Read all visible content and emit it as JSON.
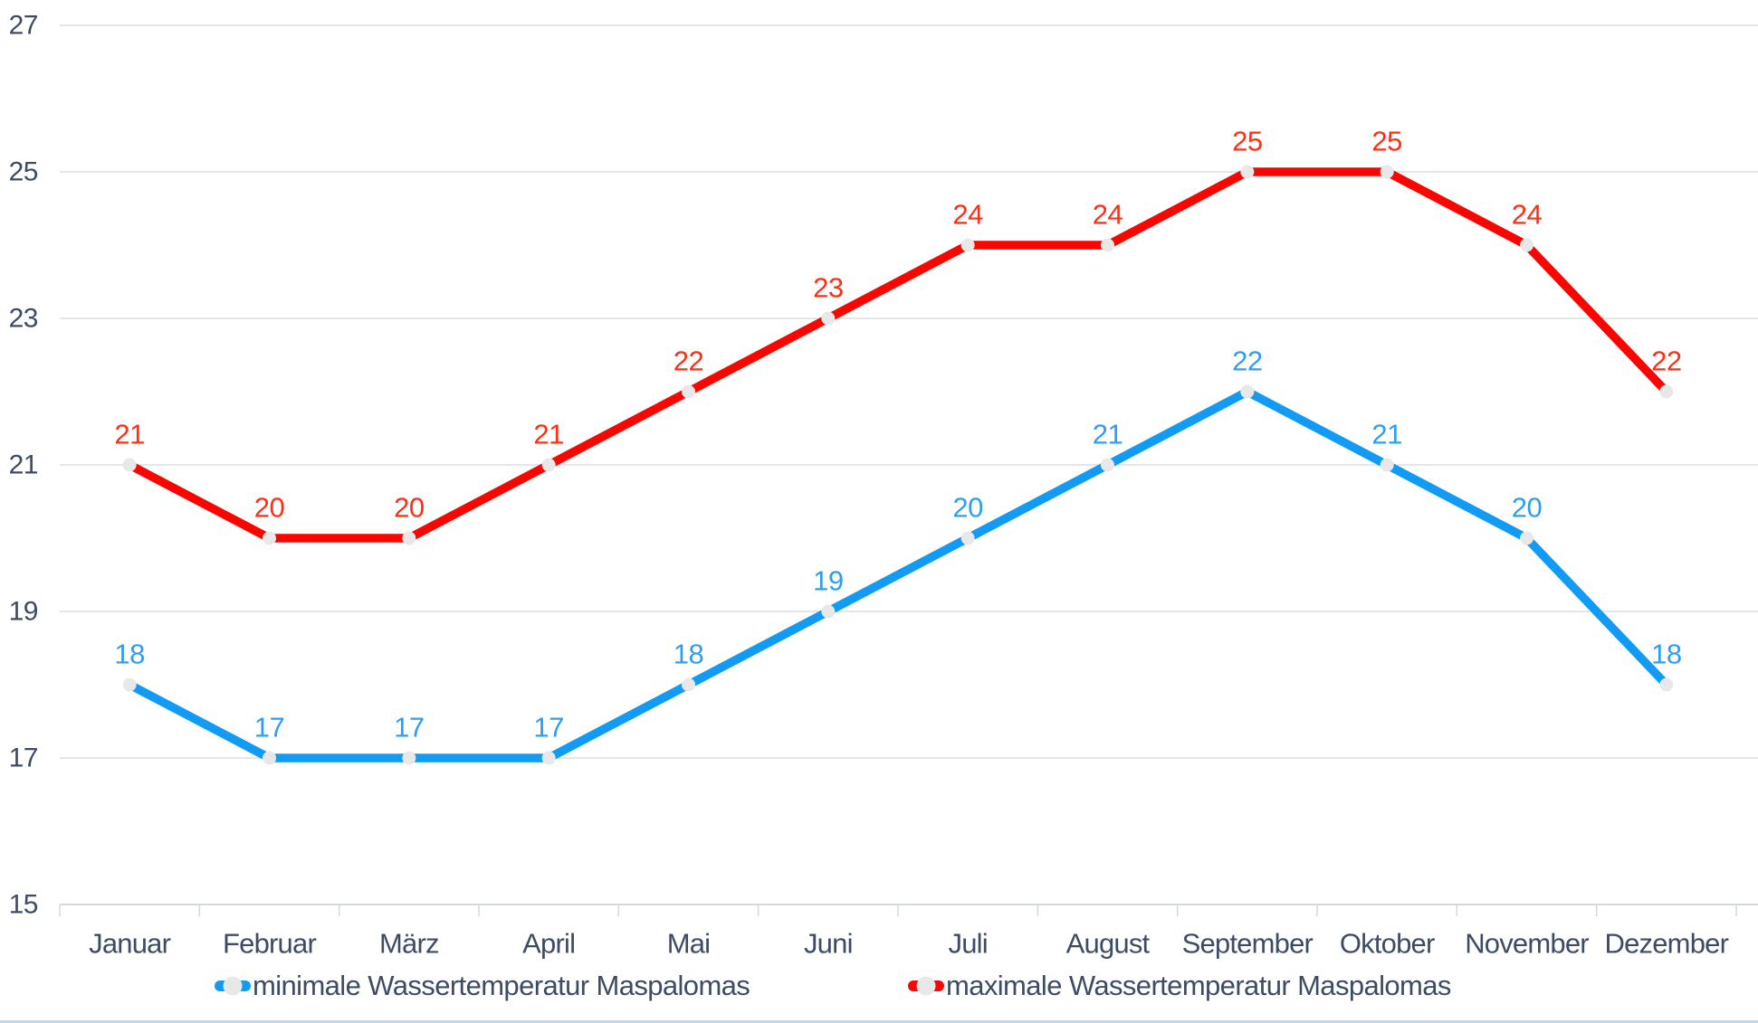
{
  "chart_data": {
    "type": "line",
    "categories": [
      "Januar",
      "Februar",
      "März",
      "April",
      "Mai",
      "Juni",
      "Juli",
      "August",
      "September",
      "Oktober",
      "November",
      "Dezember"
    ],
    "series": [
      {
        "name": "minimale Wassertemperatur Maspalomas",
        "values": [
          18,
          17,
          17,
          17,
          18,
          19,
          20,
          21,
          22,
          21,
          20,
          18
        ],
        "line_color": "#119BF4",
        "label_color": "#2E9FF0"
      },
      {
        "name": "maximale Wassertemperatur Maspalomas",
        "values": [
          21,
          20,
          20,
          21,
          22,
          23,
          24,
          24,
          25,
          25,
          24,
          22
        ],
        "line_color": "#F90600",
        "label_color": "#FF2E14"
      }
    ],
    "y_ticks": [
      15,
      17,
      19,
      21,
      23,
      25,
      27
    ],
    "ylim": [
      15,
      27
    ],
    "grid": true,
    "legend_position": "bottom",
    "title": "",
    "xlabel": "",
    "ylabel": ""
  },
  "style_colors": {
    "marker_fill": "#E8E8E8",
    "gridline": "#DCDFE2",
    "axis_line": "#D4D9DE",
    "axis_text": "#3E4C63",
    "bottom_border": "#C7D5E8"
  }
}
